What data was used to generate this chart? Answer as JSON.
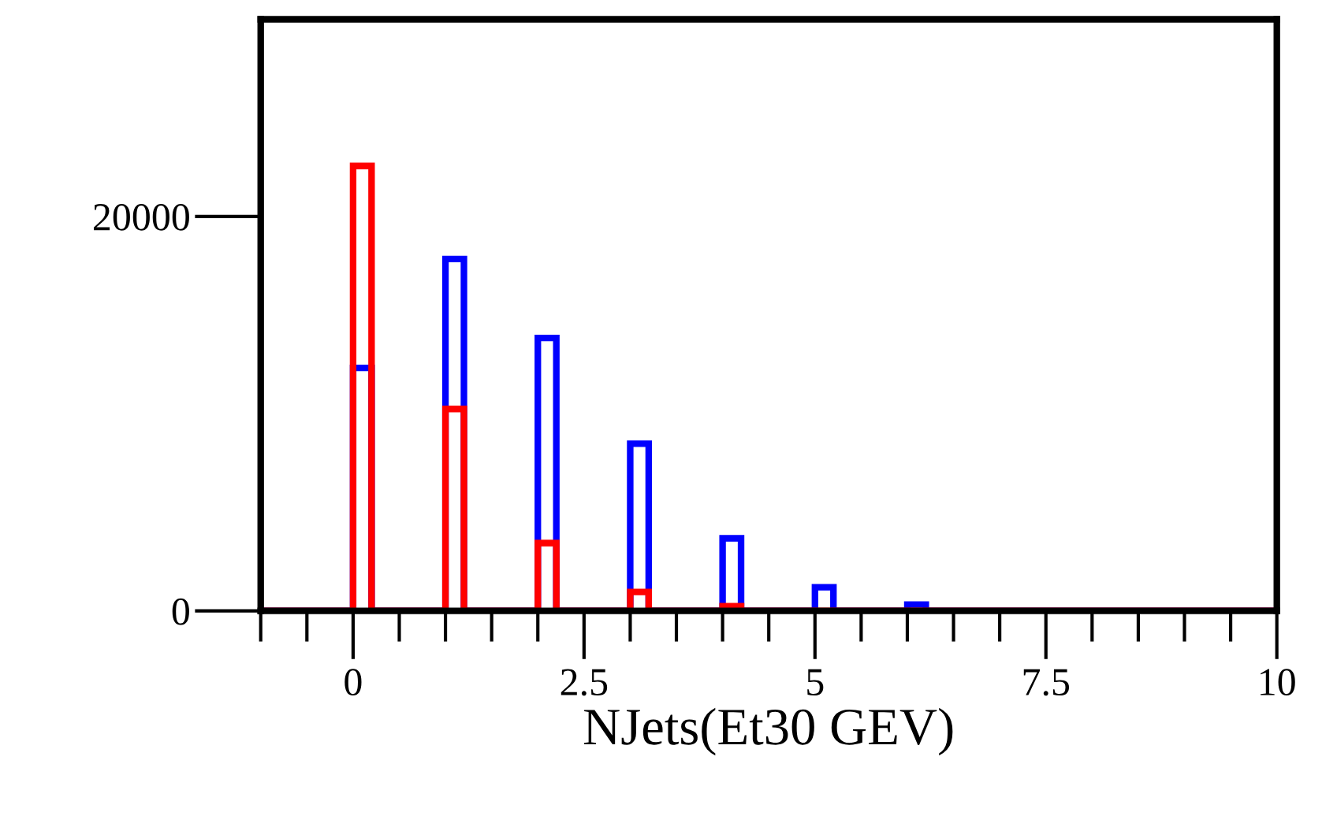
{
  "chart_data": {
    "type": "histogram",
    "xlabel": "NJets(Et30 GEV)",
    "bins": [
      -1,
      0,
      0.2,
      1,
      1.2,
      2,
      2.2,
      3,
      3.2,
      4,
      4.2,
      5,
      5.2,
      6,
      6.2,
      10
    ],
    "series": [
      {
        "color": "#0000ff",
        "values": [
          0,
          12320,
          0,
          17840,
          0,
          13840,
          0,
          8480,
          0,
          3680,
          0,
          1200,
          0,
          320,
          0
        ]
      },
      {
        "color": "#ff0000",
        "values": [
          0,
          22560,
          0,
          10240,
          0,
          3440,
          0,
          960,
          0,
          240,
          0,
          0,
          0,
          0,
          0
        ]
      }
    ],
    "xlim": [
      -1,
      10
    ],
    "xticks": [
      0,
      2.5,
      5,
      7.5,
      10
    ],
    "ylim": [
      0,
      30000
    ],
    "yticks": [
      0,
      20000
    ],
    "grid": false,
    "legend": false
  }
}
